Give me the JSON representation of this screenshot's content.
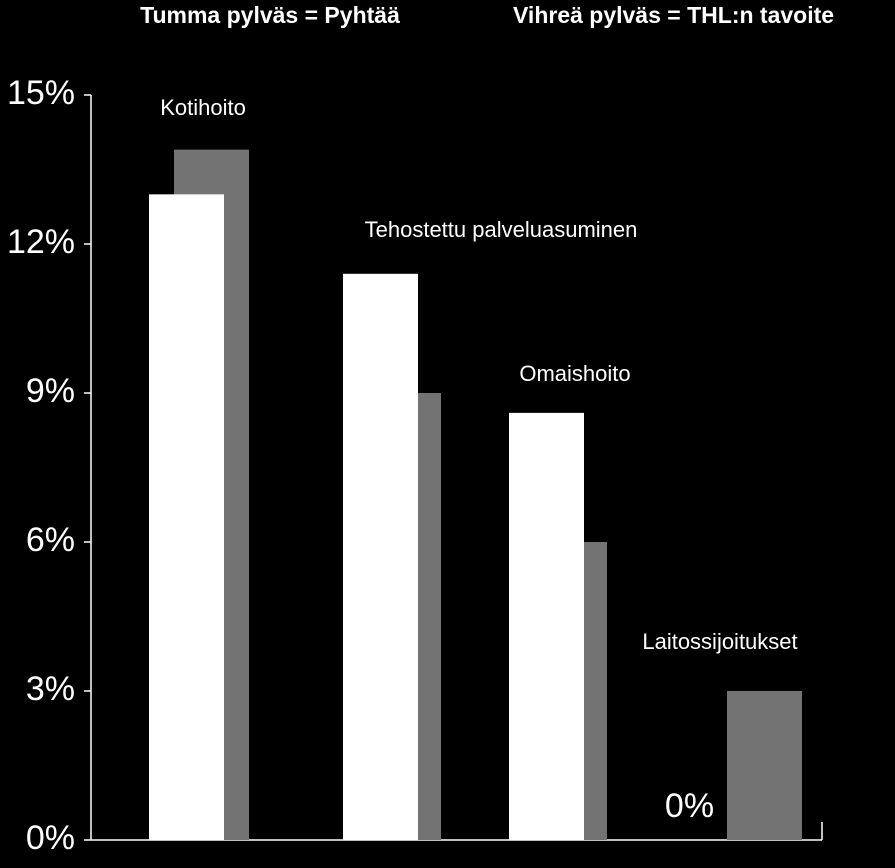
{
  "chart_data": {
    "type": "bar",
    "categories": [
      "Kotihoito",
      "Tehostettu palveluasuminen",
      "Omaishoito",
      "Laitossijoitukset"
    ],
    "series": [
      {
        "name": "Tumma pylväs = Pyhtää",
        "color": "#ffffff",
        "values": [
          13,
          11.4,
          8.6,
          0
        ],
        "value_labels": [
          null,
          null,
          null,
          "0%"
        ]
      },
      {
        "name": "Vihreä pylväs = THL:n tavoite",
        "color": "#737373",
        "values": [
          13.9,
          9,
          6,
          3
        ]
      }
    ],
    "ylim": [
      0,
      15
    ],
    "yticks": [
      {
        "value": 0,
        "label": "0%"
      },
      {
        "value": 3,
        "label": "3%"
      },
      {
        "value": 6,
        "label": "6%"
      },
      {
        "value": 9,
        "label": "9%"
      },
      {
        "value": 12,
        "label": "12%"
      },
      {
        "value": 15,
        "label": "15%"
      }
    ]
  }
}
